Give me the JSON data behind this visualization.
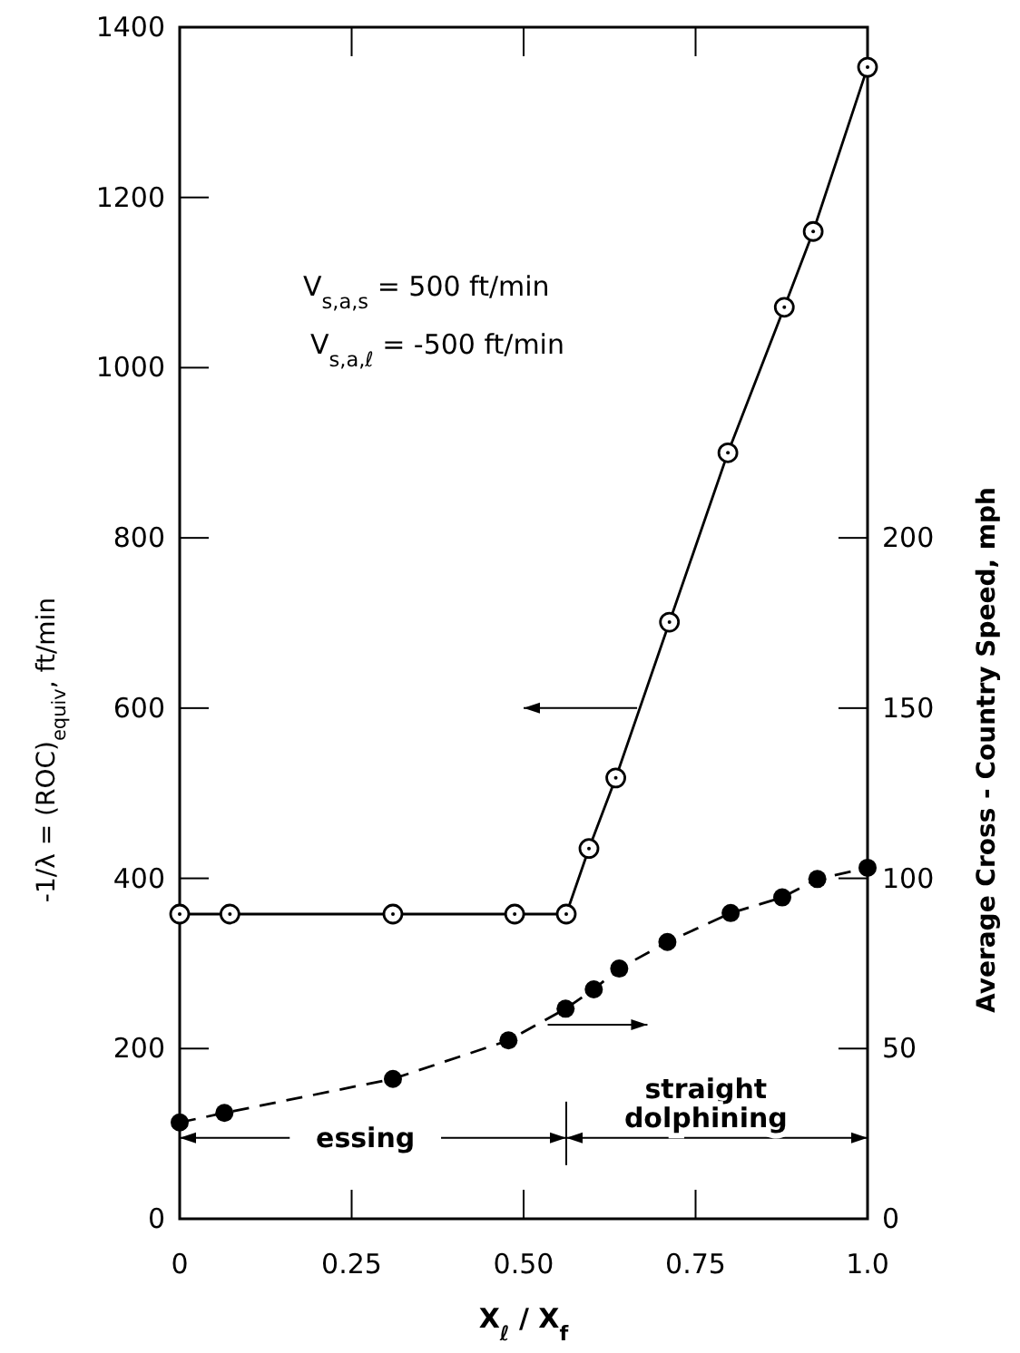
{
  "chart_data": {
    "type": "line",
    "xlabel": "X$_{ℓ}$ / X$_{f}$",
    "ylabel": "-1/λ = (ROC)$_{equiv}$, ft/min",
    "y2label": "Average   Cross - Country   Speed, mph",
    "annotations": [
      "V$_{s,a,s}$ = 500 ft/min",
      "V$_{s,a,ℓ}$ = -500 ft/min",
      "essing",
      "straight dolphining"
    ],
    "xlim": [
      0,
      1
    ],
    "xticks": [
      0,
      {
        "value": 0.25,
        "label": "0.25"
      },
      {
        "value": 0.5,
        "label": "0.50"
      },
      0.75,
      {
        "value": 1,
        "label": "1.0"
      }
    ],
    "ylim": [
      0,
      1400
    ],
    "yticks": [
      0,
      200,
      400,
      600,
      800,
      1000,
      1200,
      1400
    ],
    "y2lim": [
      0,
      350
    ],
    "y2ticks": [
      0,
      50,
      100,
      150,
      200
    ],
    "grid": false,
    "marker": "circle",
    "series": [
      {
        "color": "#000000",
        "line_style": "solid",
        "x": [
          0,
          0.073,
          0.31,
          0.487,
          0.562,
          0.595,
          0.634,
          0.712,
          0.797,
          0.879,
          0.921,
          1.0
        ],
        "values": [
          358,
          358,
          358,
          358,
          358,
          435,
          518,
          701,
          900,
          1071,
          1160,
          1353
        ]
      },
      {
        "color": "#000000",
        "line_style": "dashed",
        "axis": "y2",
        "x": [
          0,
          0.065,
          0.31,
          0.478,
          0.561,
          0.602,
          0.639,
          0.709,
          0.801,
          0.876,
          0.927,
          1.0
        ],
        "values": [
          28.3,
          31.1,
          41.1,
          52.4,
          61.7,
          67.4,
          73.5,
          81.3,
          89.8,
          94.4,
          99.8,
          103.1
        ]
      }
    ]
  }
}
